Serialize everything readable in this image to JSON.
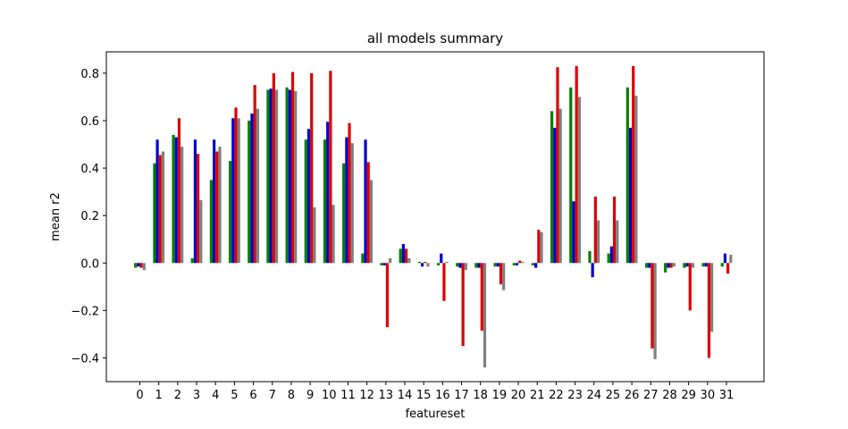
{
  "chart_data": {
    "type": "bar",
    "title": "all models summary",
    "xlabel": "featureset",
    "ylabel": "mean r2",
    "ylim": [
      -0.5,
      0.89
    ],
    "yticks": [
      -0.4,
      -0.2,
      0.0,
      0.2,
      0.4,
      0.6,
      0.8
    ],
    "ytick_labels": [
      "−0.4",
      "−0.2",
      "0.0",
      "0.2",
      "0.4",
      "0.6",
      "0.8"
    ],
    "categories": [
      "0",
      "1",
      "2",
      "3",
      "4",
      "5",
      "6",
      "7",
      "8",
      "9",
      "10",
      "11",
      "12",
      "13",
      "14",
      "15",
      "16",
      "17",
      "18",
      "19",
      "20",
      "21",
      "22",
      "23",
      "24",
      "25",
      "26",
      "27",
      "28",
      "29",
      "30",
      "31"
    ],
    "grid": false,
    "series": [
      {
        "color": "#008000",
        "values": [
          -0.02,
          0.42,
          0.54,
          0.02,
          0.35,
          0.43,
          0.6,
          0.73,
          0.74,
          0.52,
          0.52,
          0.42,
          0.04,
          -0.01,
          0.06,
          0.005,
          -0.01,
          -0.015,
          -0.02,
          -0.015,
          -0.01,
          -0.01,
          0.64,
          0.74,
          0.05,
          0.04,
          0.74,
          -0.02,
          -0.04,
          -0.02,
          -0.015,
          -0.015
        ]
      },
      {
        "color": "#0000cc",
        "values": [
          -0.015,
          0.52,
          0.53,
          0.52,
          0.52,
          0.61,
          0.63,
          0.735,
          0.73,
          0.565,
          0.595,
          0.53,
          0.52,
          -0.01,
          0.08,
          -0.015,
          0.04,
          -0.02,
          -0.02,
          -0.015,
          -0.01,
          -0.02,
          0.57,
          0.26,
          -0.06,
          0.07,
          0.57,
          -0.02,
          -0.02,
          -0.015,
          -0.015,
          0.04
        ]
      },
      {
        "color": "#dd0000",
        "values": [
          -0.02,
          0.455,
          0.61,
          0.46,
          0.47,
          0.655,
          0.75,
          0.8,
          0.805,
          0.8,
          0.81,
          0.59,
          0.425,
          -0.27,
          0.06,
          0.005,
          -0.16,
          -0.35,
          -0.285,
          -0.09,
          0.01,
          0.14,
          0.825,
          0.83,
          0.28,
          0.28,
          0.83,
          -0.36,
          -0.02,
          -0.2,
          -0.4,
          -0.045
        ]
      },
      {
        "color": "#808080",
        "values": [
          -0.03,
          0.47,
          0.49,
          0.265,
          0.49,
          0.61,
          0.65,
          0.73,
          0.725,
          0.235,
          0.245,
          0.505,
          0.35,
          0.02,
          0.02,
          -0.015,
          0.005,
          -0.03,
          -0.44,
          -0.115,
          0.005,
          0.13,
          0.65,
          0.7,
          0.18,
          0.18,
          0.705,
          -0.405,
          -0.015,
          -0.02,
          -0.29,
          0.035
        ]
      }
    ]
  }
}
